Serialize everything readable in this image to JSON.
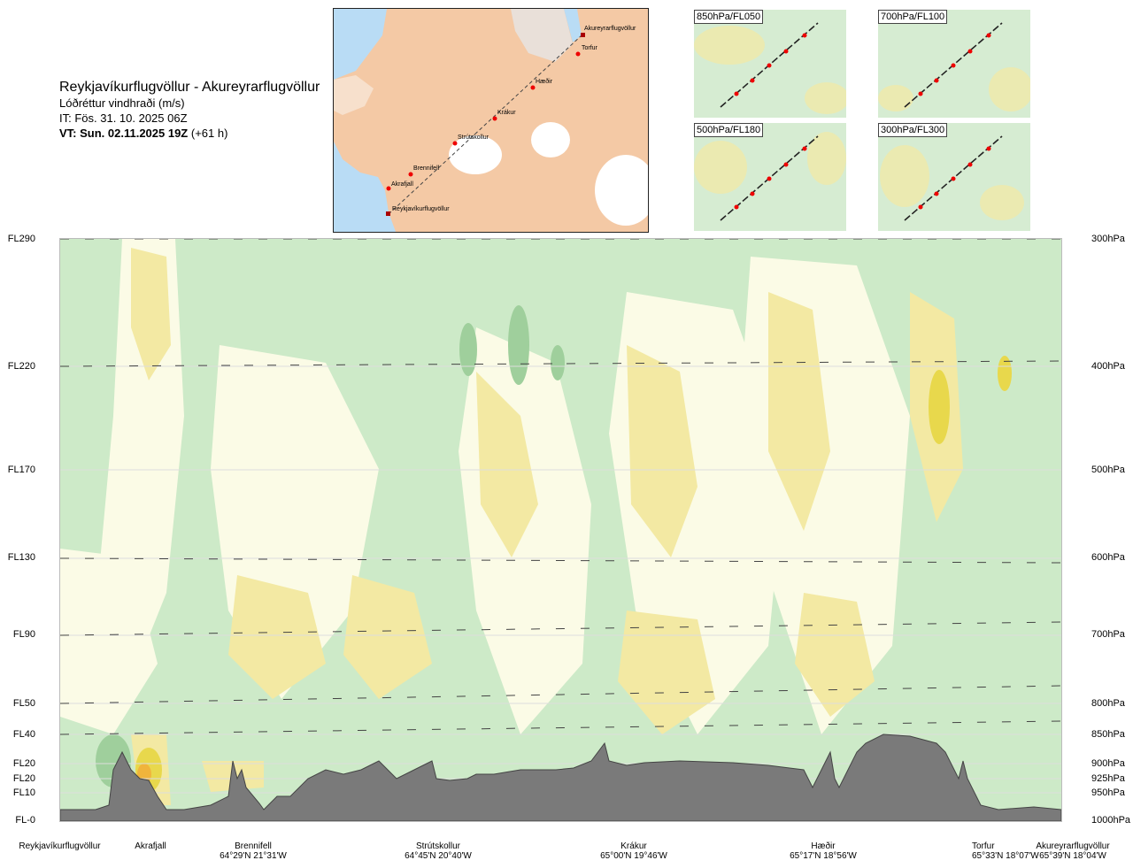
{
  "header": {
    "route_title": "Reykjavíkurflugvöllur - Akureyrarflugvöllur",
    "parameter": "Lóðréttur vindhraði (m/s)",
    "issue_time": "IT: Fös. 31. 10. 2025 06Z",
    "valid_time": "VT: Sun. 02.11.2025 19Z",
    "lead_time": "(+61 h)"
  },
  "route_map": {
    "labels": [
      "Akureyrarflugvöllur",
      "Torfur",
      "Hæðir",
      "Krákur",
      "Strútskollur",
      "Brennifell",
      "Akrafjall",
      "Reykjavíkurflugvöllur"
    ]
  },
  "mini_maps": [
    {
      "label": "850hPa/FL050"
    },
    {
      "label": "700hPa/FL100"
    },
    {
      "label": "500hPa/FL180"
    },
    {
      "label": "300hPa/FL300"
    }
  ],
  "flight_levels": [
    "FL290",
    "FL220",
    "FL170",
    "FL130",
    "FL90",
    "FL50",
    "FL40",
    "FL20",
    "FL20",
    "FL10",
    "FL-0"
  ],
  "pressure_levels": [
    "300hPa",
    "400hPa",
    "500hPa",
    "600hPa",
    "700hPa",
    "800hPa",
    "850hPa",
    "900hPa",
    "925hPa",
    "950hPa",
    "1000hPa"
  ],
  "waypoints": [
    {
      "name": "Reykjavíkurflugvöllur",
      "coord": ""
    },
    {
      "name": "Akrafjall",
      "coord": ""
    },
    {
      "name": "Brennifell",
      "coord": "64°29'N 21°31'W"
    },
    {
      "name": "Strútskollur",
      "coord": "64°45'N 20°40'W"
    },
    {
      "name": "Krákur",
      "coord": "65°00'N 19°46'W"
    },
    {
      "name": "Hæðir",
      "coord": "65°17'N 18°56'W"
    },
    {
      "name": "Torfur",
      "coord": "65°33'N 18°07'W"
    },
    {
      "name": "Akureyrarflugvöllur",
      "coord": "65°39'N 18°04'W"
    }
  ],
  "colors": {
    "sink": "#cdeac8",
    "sink_strong": "#9fcf9c",
    "neutral": "#fbfbe6",
    "lift": "#f3e9a3",
    "lift_strong": "#e8d84c",
    "terrain": "#7a7a7a",
    "sea": "#b9dcf5",
    "land": "#f4c9a5"
  }
}
